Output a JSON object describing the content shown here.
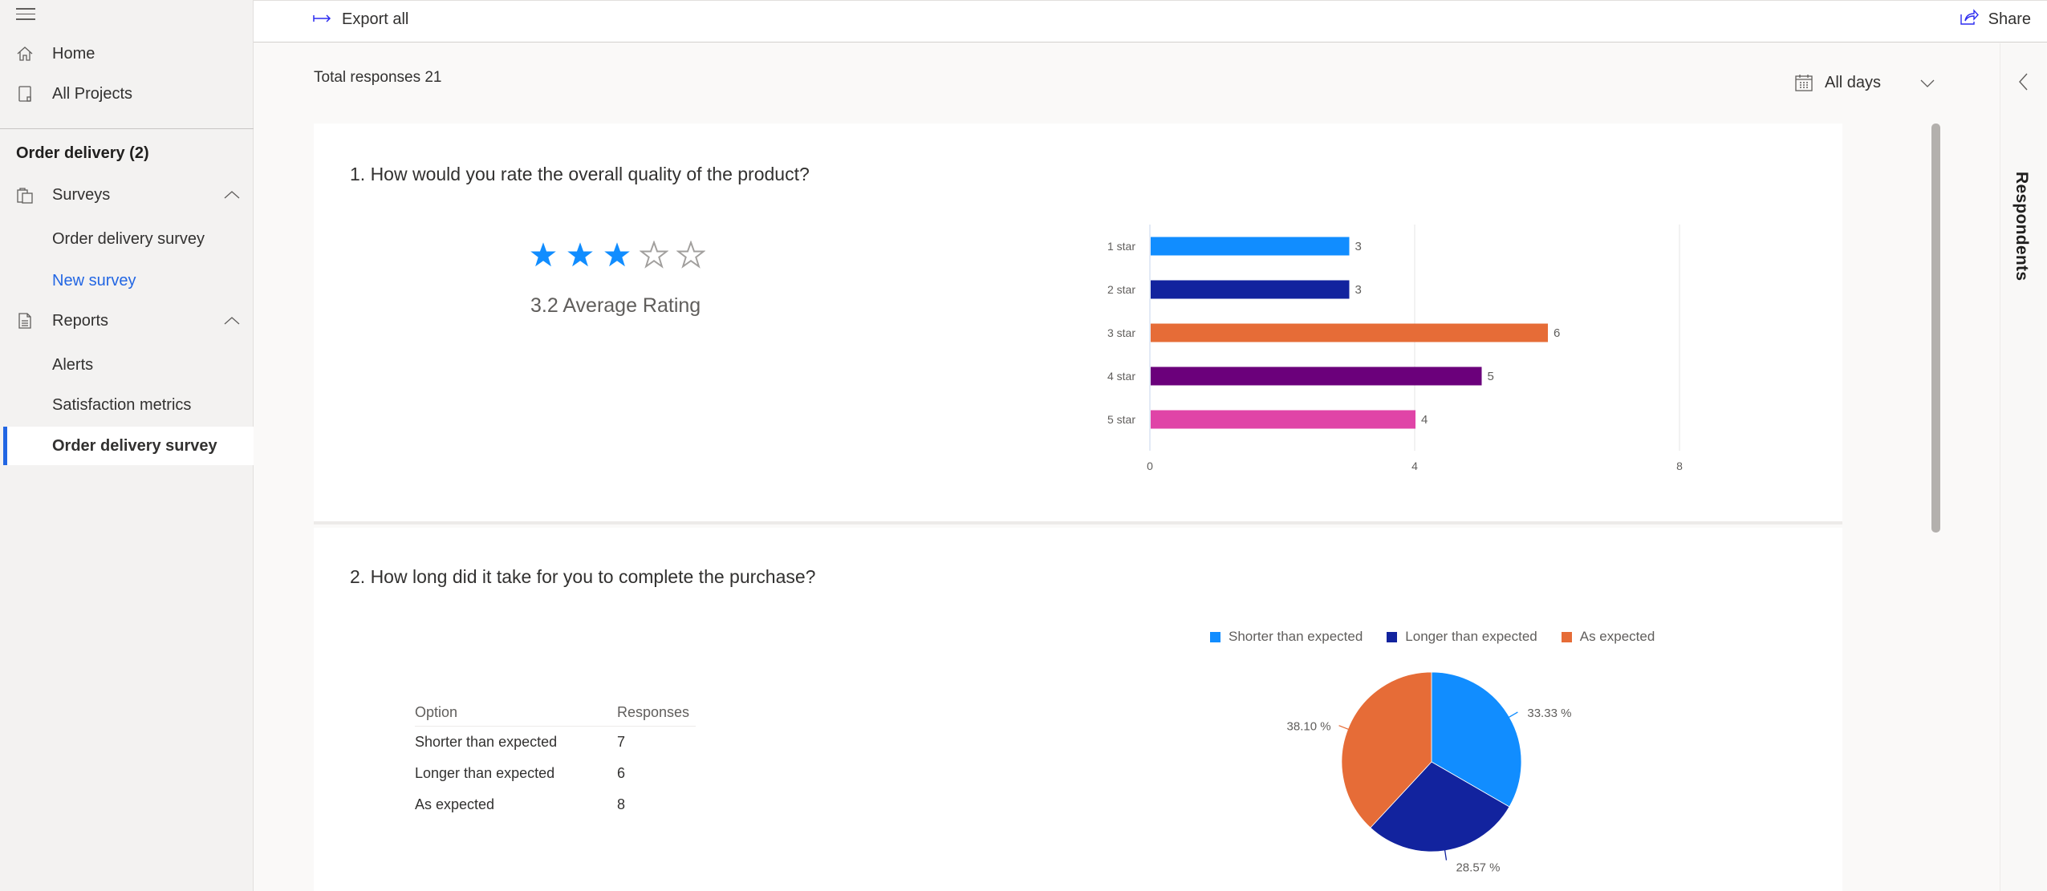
{
  "sidebar": {
    "top_items": [
      {
        "label": "Home",
        "icon": "home-icon"
      },
      {
        "label": "All Projects",
        "icon": "projects-icon"
      }
    ],
    "group_title": "Order delivery (2)",
    "sections": [
      {
        "label": "Surveys",
        "icon": "clipboard-icon",
        "expanded": true,
        "items": [
          {
            "label": "Order delivery survey"
          },
          {
            "label": "New survey"
          }
        ]
      },
      {
        "label": "Reports",
        "icon": "document-icon",
        "expanded": true,
        "items": [
          {
            "label": "Alerts"
          },
          {
            "label": "Satisfaction metrics"
          },
          {
            "label": "Order delivery survey"
          }
        ]
      }
    ]
  },
  "toolbar": {
    "export_label": "Export all",
    "share_label": "Share"
  },
  "summary": {
    "total_responses": "Total responses 21",
    "date_filter": "All days"
  },
  "respondents_panel": {
    "label": "Respondents"
  },
  "colors": {
    "accent": "#2266e3",
    "series_1": "#118dff",
    "series_2": "#12239e",
    "series_3": "#e66c37",
    "series_4": "#6b007b",
    "series_5": "#e044a7"
  },
  "questions": [
    {
      "title": "1. How would you rate the overall quality of the product?",
      "rating": {
        "filled_stars": 3,
        "total_stars": 5,
        "label": "3.2 Average Rating"
      }
    },
    {
      "title": "2. How long did it take for you to complete the purchase?",
      "table": {
        "headers": [
          "Option",
          "Responses"
        ],
        "rows": [
          [
            "Shorter than expected",
            "7"
          ],
          [
            "Longer than expected",
            "6"
          ],
          [
            "As expected",
            "8"
          ]
        ]
      },
      "legend": [
        "Shorter than expected",
        "Longer than expected",
        "As expected"
      ]
    }
  ],
  "chart_data": [
    {
      "type": "bar",
      "orientation": "horizontal",
      "title": "",
      "categories": [
        "1 star",
        "2 star",
        "3 star",
        "4 star",
        "5 star"
      ],
      "values": [
        3,
        3,
        6,
        5,
        4
      ],
      "colors": [
        "#118dff",
        "#12239e",
        "#e66c37",
        "#6b007b",
        "#e044a7"
      ],
      "xlabel": "",
      "ylabel": "",
      "xlim": [
        0,
        8
      ],
      "xticks": [
        "0",
        "4",
        "8"
      ],
      "grid": true,
      "data_labels": true
    },
    {
      "type": "pie",
      "title": "",
      "categories": [
        "Shorter than expected",
        "Longer than expected",
        "As expected"
      ],
      "values": [
        7,
        6,
        8
      ],
      "percent_labels": [
        "33.33 %",
        "28.57 %",
        "38.10 %"
      ],
      "colors": [
        "#118dff",
        "#12239e",
        "#e66c37"
      ],
      "legend_position": "top"
    }
  ]
}
